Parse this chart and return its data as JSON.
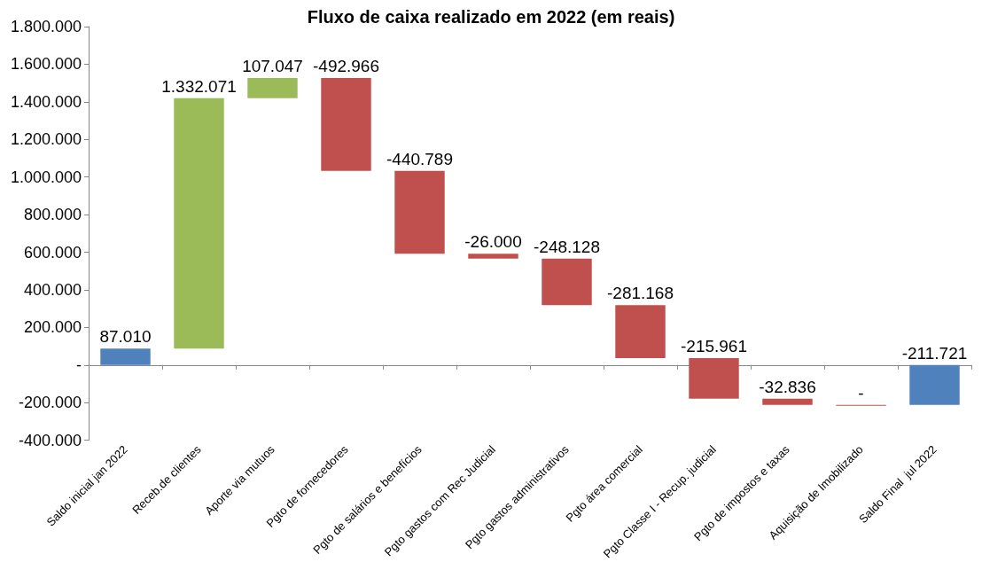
{
  "chart_data": {
    "type": "bar",
    "title": "Fluxo de caixa realizado em 2022 (em reais)",
    "categories": [
      "Saldo inicial jan 2022",
      "Receb.de clientes",
      "Aporte via mutuos",
      "Pgto de fornecedores",
      "Pgto de salários e benefícios",
      "Pgto gastos com Rec Judicial",
      "Pgto gastos administrativos",
      "Pgto área comercial",
      "Pgto Classe I - Recup. judicial",
      "Pgto de impostos e taxas",
      "Aquisição de Imobilizado",
      "Saldo Final  jul 2022"
    ],
    "values": [
      87010,
      1332071,
      107047,
      -492966,
      -440789,
      -26000,
      -248128,
      -281168,
      -215961,
      -32836,
      0,
      -211721
    ],
    "base": [
      0,
      87010,
      1419081,
      1526128,
      1033162,
      592373,
      566373,
      318245,
      37077,
      -178884,
      -211720,
      0
    ],
    "colors": [
      "#4f81bd",
      "#9bbb59",
      "#9bbb59",
      "#c0504d",
      "#c0504d",
      "#c0504d",
      "#c0504d",
      "#c0504d",
      "#c0504d",
      "#c0504d",
      "#c0504d",
      "#4f81bd"
    ],
    "value_labels": [
      "87.010",
      "1.332.071",
      "107.047",
      "-492.966",
      "-440.789",
      "-26.000",
      "-248.128",
      "-281.168",
      "-215.961",
      "-32.836",
      "-",
      "-211.721"
    ],
    "ylim": [
      -400000,
      1800000
    ],
    "yticks": [
      {
        "value": -400000,
        "label": "-400.000"
      },
      {
        "value": -200000,
        "label": "-200.000"
      },
      {
        "value": 0,
        "label": "-"
      },
      {
        "value": 200000,
        "label": "200.000"
      },
      {
        "value": 400000,
        "label": "400.000"
      },
      {
        "value": 600000,
        "label": "600.000"
      },
      {
        "value": 800000,
        "label": "800.000"
      },
      {
        "value": 1000000,
        "label": "1.000.000"
      },
      {
        "value": 1200000,
        "label": "1.200.000"
      },
      {
        "value": 1400000,
        "label": "1.400.000"
      },
      {
        "value": 1600000,
        "label": "1.600.000"
      },
      {
        "value": 1800000,
        "label": "1.800.000"
      }
    ]
  }
}
